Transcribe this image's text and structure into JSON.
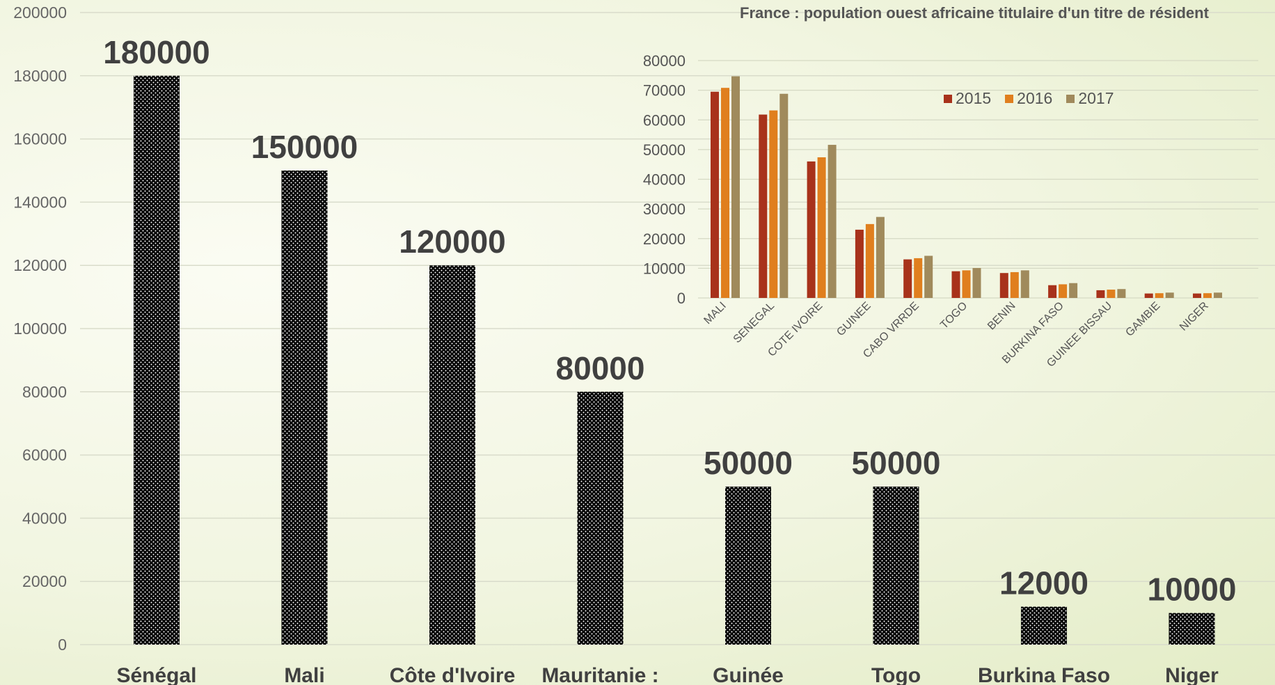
{
  "charts": {
    "main": {
      "type": "bar",
      "categories": [
        "Sénégal",
        "Mali",
        "Côte d'Ivoire",
        "Mauritanie :",
        "Guinée",
        "Togo",
        "Burkina Faso",
        "Niger"
      ],
      "values": [
        180000,
        150000,
        120000,
        80000,
        50000,
        50000,
        12000,
        10000
      ],
      "ylim": [
        0,
        200000
      ],
      "yticks": [
        "0",
        "20000",
        "40000",
        "60000",
        "80000",
        "100000",
        "120000",
        "140000",
        "160000",
        "180000",
        "200000"
      ],
      "data_labels": [
        "180000",
        "150000",
        "120000",
        "80000",
        "50000",
        "50000",
        "12000",
        "10000"
      ],
      "bar_fill": "black-with-white-dots"
    },
    "inset": {
      "type": "bar",
      "title": "France : population ouest africaine titulaire d'un titre de résident",
      "categories": [
        "MALI",
        "SENEGAL",
        "COTE IVOIRE",
        "GUINEE",
        "CABO VRRDE",
        "TOGO",
        "BENIN",
        "BURKINA FASO",
        "GUINEE BISSAU",
        "GAMBIE",
        "NIGER"
      ],
      "series": [
        {
          "name": "2015",
          "color": "#a8321b",
          "values": [
            69500,
            61800,
            46000,
            23000,
            13000,
            9000,
            8400,
            4300,
            2600,
            1500,
            1500
          ]
        },
        {
          "name": "2016",
          "color": "#e07f1e",
          "values": [
            70800,
            63200,
            47400,
            24900,
            13400,
            9300,
            8700,
            4600,
            2800,
            1600,
            1600
          ]
        },
        {
          "name": "2017",
          "color": "#a08a5c",
          "values": [
            74700,
            68800,
            51600,
            27300,
            14200,
            10100,
            9300,
            5000,
            3000,
            1800,
            1800
          ]
        }
      ],
      "ylim": [
        0,
        80000
      ],
      "yticks": [
        "0",
        "10000",
        "20000",
        "30000",
        "40000",
        "50000",
        "60000",
        "70000",
        "80000"
      ],
      "legend_position": "top-right"
    }
  }
}
